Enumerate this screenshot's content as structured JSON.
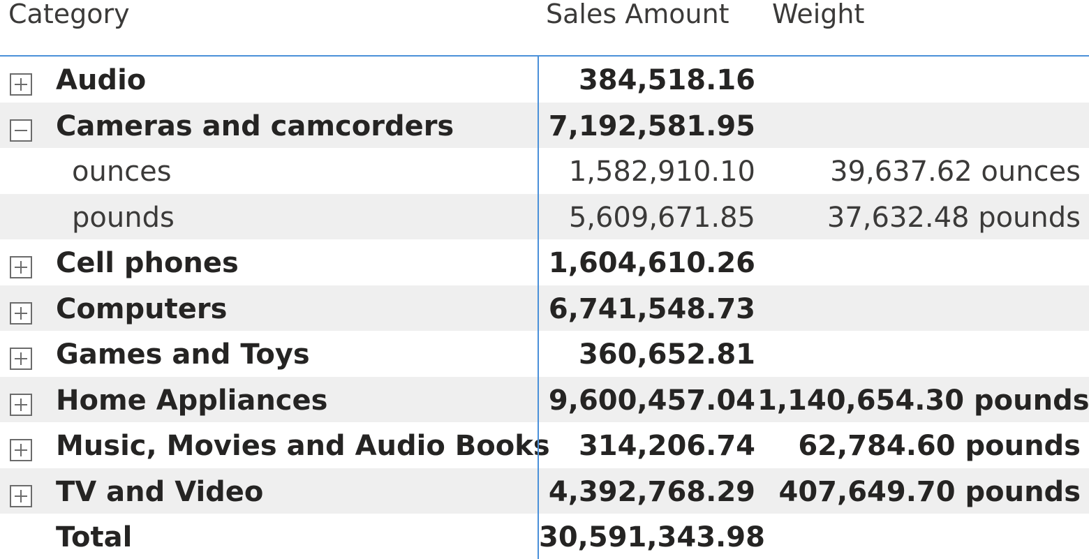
{
  "headers": {
    "category": "Category",
    "sales_amount": "Sales Amount",
    "weight": "Weight"
  },
  "rows": [
    {
      "category": "Audio",
      "sales": "384,518.16",
      "weight": "",
      "toggle": "expand"
    },
    {
      "category": "Cameras and camcorders",
      "sales": "7,192,581.95",
      "weight": "",
      "toggle": "collapse"
    },
    {
      "category": "ounces",
      "sales": "1,582,910.10",
      "weight": "39,637.62 ounces"
    },
    {
      "category": "pounds",
      "sales": "5,609,671.85",
      "weight": "37,632.48 pounds"
    },
    {
      "category": "Cell phones",
      "sales": "1,604,610.26",
      "weight": "",
      "toggle": "expand"
    },
    {
      "category": "Computers",
      "sales": "6,741,548.73",
      "weight": "",
      "toggle": "expand"
    },
    {
      "category": "Games and Toys",
      "sales": "360,652.81",
      "weight": "",
      "toggle": "expand"
    },
    {
      "category": "Home Appliances",
      "sales": "9,600,457.04",
      "weight": "1,140,654.30 pounds",
      "toggle": "expand"
    },
    {
      "category": "Music, Movies and Audio Books",
      "sales": "314,206.74",
      "weight": "62,784.60 pounds",
      "toggle": "expand"
    },
    {
      "category": "TV and Video",
      "sales": "4,392,768.29",
      "weight": "407,649.70 pounds",
      "toggle": "expand"
    }
  ],
  "total": {
    "label": "Total",
    "sales": "30,591,343.98",
    "weight": ""
  },
  "colors": {
    "accent_line": "#4a90d9",
    "row_shade": "#efefef",
    "text": "#252423"
  }
}
